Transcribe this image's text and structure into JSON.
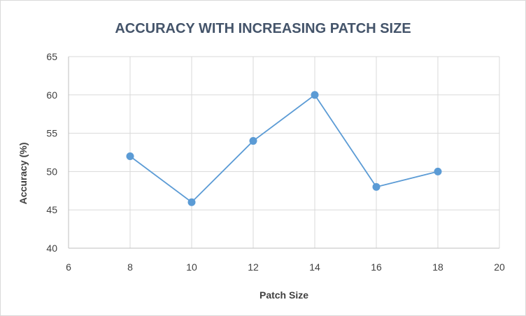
{
  "chart_data": {
    "type": "scatter",
    "title": "ACCURACY WITH INCREASING PATCH SIZE",
    "xlabel": "Patch Size",
    "ylabel": "Accuracy (%)",
    "xlim": [
      6,
      20
    ],
    "ylim": [
      40,
      65
    ],
    "xticks": [
      6,
      8,
      10,
      12,
      14,
      16,
      18,
      20
    ],
    "yticks": [
      40,
      45,
      50,
      55,
      60,
      65
    ],
    "grid": true,
    "legend": "none",
    "series": [
      {
        "x": [
          8,
          10,
          12,
          14,
          16,
          18
        ],
        "y": [
          52,
          46,
          54,
          60,
          48,
          50
        ],
        "color": "#5b9bd5",
        "style": "line-with-markers"
      }
    ]
  }
}
